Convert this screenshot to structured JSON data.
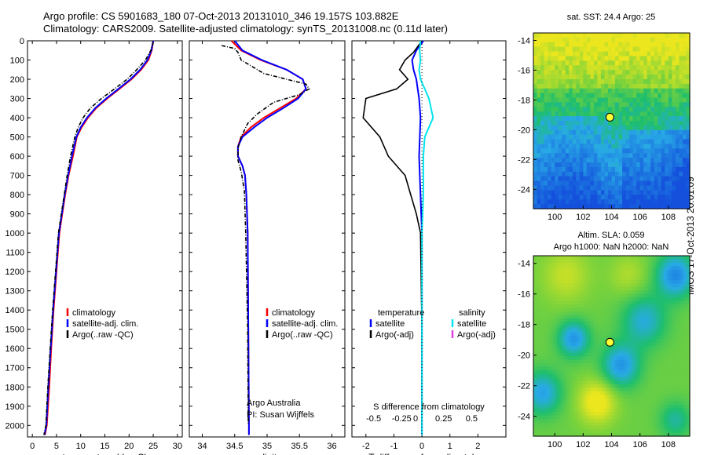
{
  "header": {
    "title_line1": "Argo profile: CS 5901683_180 07-Oct-2013 20131010_346 19.157S 103.882E",
    "title_line2": "Climatology: CARS2009. Satellite-adjusted climatology: synTS_20131008.nc (0.11d later)"
  },
  "footer": {
    "stamp": "IMOS 17-Oct-2013 20:01:09"
  },
  "colors": {
    "climatology": "#ff0000",
    "satellite": "#0000ff",
    "argo": "#000000",
    "sal_satellite": "#00e5ee",
    "sal_argo": "#e040e0"
  },
  "chart_data": [
    {
      "id": "temperature",
      "type": "line",
      "xlabel": "temperature (deg C)",
      "xlim": [
        -1,
        31
      ],
      "xticks": [
        0,
        5,
        10,
        15,
        20,
        25,
        30
      ],
      "ylim": [
        0,
        2060
      ],
      "yticks": [
        0,
        100,
        200,
        300,
        400,
        500,
        600,
        700,
        800,
        900,
        1000,
        1100,
        1200,
        1300,
        1400,
        1500,
        1600,
        1700,
        1800,
        1900,
        2000
      ],
      "legend": [
        "climatology",
        "satellite-adj. clim.",
        "Argo(..raw -QC)"
      ],
      "series": [
        {
          "name": "climatology",
          "color": "#ff0000",
          "points": [
            [
              25,
              0
            ],
            [
              24.7,
              50
            ],
            [
              24,
              100
            ],
            [
              22.5,
              150
            ],
            [
              20.5,
              200
            ],
            [
              18,
              250
            ],
            [
              15.5,
              300
            ],
            [
              13.2,
              350
            ],
            [
              11.5,
              400
            ],
            [
              10.2,
              450
            ],
            [
              9.2,
              500
            ],
            [
              8.4,
              600
            ],
            [
              7.5,
              700
            ],
            [
              6.8,
              800
            ],
            [
              6.2,
              900
            ],
            [
              5.6,
              1000
            ],
            [
              5,
              1200
            ],
            [
              4.4,
              1400
            ],
            [
              3.9,
              1600
            ],
            [
              3.5,
              1800
            ],
            [
              3.0,
              2000
            ],
            [
              2.6,
              2050
            ]
          ]
        },
        {
          "name": "satellite-adj. clim.",
          "color": "#0000ff",
          "points": [
            [
              25,
              0
            ],
            [
              24.6,
              50
            ],
            [
              23.8,
              100
            ],
            [
              22.3,
              150
            ],
            [
              20.3,
              200
            ],
            [
              17.8,
              250
            ],
            [
              15.3,
              300
            ],
            [
              13,
              350
            ],
            [
              11.3,
              400
            ],
            [
              10,
              450
            ],
            [
              9.1,
              500
            ],
            [
              8.2,
              600
            ],
            [
              7.4,
              700
            ],
            [
              6.7,
              800
            ],
            [
              6.1,
              900
            ],
            [
              5.5,
              1000
            ],
            [
              4.9,
              1200
            ],
            [
              4.3,
              1400
            ],
            [
              3.8,
              1600
            ],
            [
              3.3,
              1800
            ],
            [
              2.9,
              2000
            ],
            [
              2.5,
              2050
            ]
          ]
        },
        {
          "name": "Argo(..raw -QC)",
          "color": "#000000",
          "points": [
            [
              25,
              5
            ],
            [
              24.5,
              50
            ],
            [
              23.4,
              100
            ],
            [
              21.6,
              150
            ],
            [
              19.6,
              200
            ],
            [
              17,
              250
            ],
            [
              14.3,
              300
            ],
            [
              12,
              350
            ],
            [
              10.5,
              400
            ],
            [
              9.5,
              450
            ],
            [
              8.8,
              500
            ],
            [
              7.9,
              600
            ],
            [
              7.2,
              700
            ],
            [
              6.6,
              800
            ],
            [
              6,
              900
            ],
            [
              5.4,
              1000
            ],
            [
              4.8,
              1200
            ],
            [
              4.2,
              1400
            ],
            [
              3.7,
              1600
            ],
            [
              3.2,
              1800
            ],
            [
              2.8,
              2000
            ],
            [
              2.4,
              2050
            ]
          ]
        }
      ]
    },
    {
      "id": "salinity",
      "type": "line",
      "xlabel": "salinity",
      "xlim": [
        33.8,
        36.2
      ],
      "xticks": [
        34,
        34.5,
        35,
        35.5,
        36
      ],
      "ylim": [
        0,
        2060
      ],
      "yticks": [
        0,
        100,
        200,
        300,
        400,
        500,
        600,
        700,
        800,
        900,
        1000,
        1100,
        1200,
        1300,
        1400,
        1500,
        1600,
        1700,
        1800,
        1900,
        2000
      ],
      "legend": [
        "climatology",
        "satellite-adj. clim.",
        "Argo(..raw -QC)"
      ],
      "annotation": [
        "Argo Australia",
        "PI: Susan Wijffels"
      ],
      "series": [
        {
          "name": "climatology",
          "color": "#ff0000",
          "points": [
            [
              34.45,
              0
            ],
            [
              34.6,
              50
            ],
            [
              34.9,
              100
            ],
            [
              35.3,
              150
            ],
            [
              35.55,
              200
            ],
            [
              35.6,
              250
            ],
            [
              35.45,
              300
            ],
            [
              35.2,
              350
            ],
            [
              34.95,
              400
            ],
            [
              34.75,
              450
            ],
            [
              34.6,
              500
            ],
            [
              34.55,
              550
            ],
            [
              34.55,
              600
            ],
            [
              34.62,
              650
            ],
            [
              34.66,
              700
            ],
            [
              34.68,
              800
            ],
            [
              34.7,
              1000
            ],
            [
              34.71,
              1500
            ],
            [
              34.72,
              2000
            ],
            [
              34.72,
              2050
            ]
          ]
        },
        {
          "name": "satellite-adj. clim.",
          "color": "#0000ff",
          "points": [
            [
              34.5,
              0
            ],
            [
              34.62,
              50
            ],
            [
              34.92,
              100
            ],
            [
              35.3,
              150
            ],
            [
              35.55,
              200
            ],
            [
              35.6,
              250
            ],
            [
              35.48,
              300
            ],
            [
              35.25,
              350
            ],
            [
              35,
              400
            ],
            [
              34.8,
              450
            ],
            [
              34.62,
              500
            ],
            [
              34.55,
              550
            ],
            [
              34.55,
              600
            ],
            [
              34.62,
              650
            ],
            [
              34.66,
              700
            ],
            [
              34.68,
              800
            ],
            [
              34.7,
              1000
            ],
            [
              34.71,
              1500
            ],
            [
              34.72,
              2000
            ],
            [
              34.72,
              2050
            ]
          ]
        },
        {
          "name": "Argo(..raw -QC)",
          "color": "#000000",
          "points": [
            [
              34.3,
              25
            ],
            [
              34.5,
              40
            ],
            [
              34.55,
              60
            ],
            [
              34.6,
              100
            ],
            [
              34.95,
              170
            ],
            [
              35.3,
              200
            ],
            [
              35.6,
              225
            ],
            [
              35.65,
              250
            ],
            [
              35.5,
              280
            ],
            [
              35.1,
              320
            ],
            [
              34.85,
              380
            ],
            [
              34.7,
              430
            ],
            [
              34.6,
              500
            ],
            [
              34.55,
              560
            ],
            [
              34.55,
              620
            ],
            [
              34.6,
              680
            ],
            [
              34.65,
              780
            ],
            [
              34.67,
              1000
            ],
            [
              34.7,
              1500
            ],
            [
              34.71,
              2000
            ]
          ]
        }
      ]
    },
    {
      "id": "difference",
      "type": "line",
      "xlabel": "T difference from climatology",
      "xlabel_top": "S difference from climatology",
      "xlim": [
        -2.5,
        3
      ],
      "xticks": [
        -2,
        -1,
        0,
        1,
        2
      ],
      "top_ticks": [
        "-0.5",
        "-0.25",
        "0",
        "0.25",
        "0.5"
      ],
      "ylim": [
        0,
        2060
      ],
      "legend_temperature": [
        "temperature",
        "satellite",
        "Argo(-adj)"
      ],
      "legend_salinity": [
        "salinity",
        "satellite",
        "Argo(-adj)"
      ],
      "series": [
        {
          "name": "T satellite",
          "color": "#0000ff",
          "points": [
            [
              0.05,
              0
            ],
            [
              -0.2,
              50
            ],
            [
              -0.35,
              100
            ],
            [
              -0.3,
              150
            ],
            [
              -0.2,
              200
            ],
            [
              -0.15,
              250
            ],
            [
              -0.1,
              300
            ],
            [
              -0.05,
              400
            ],
            [
              -0.1,
              600
            ],
            [
              -0.05,
              800
            ],
            [
              0,
              1000
            ],
            [
              0,
              1500
            ],
            [
              0,
              2000
            ],
            [
              0,
              2050
            ]
          ]
        },
        {
          "name": "T Argo(-adj)",
          "color": "#000000",
          "points": [
            [
              0,
              0
            ],
            [
              -0.3,
              60
            ],
            [
              -0.6,
              100
            ],
            [
              -0.8,
              150
            ],
            [
              -0.5,
              200
            ],
            [
              -0.9,
              250
            ],
            [
              -2.0,
              300
            ],
            [
              -2.1,
              400
            ],
            [
              -1.5,
              500
            ],
            [
              -1.2,
              600
            ],
            [
              -0.6,
              700
            ],
            [
              -0.4,
              800
            ],
            [
              -0.2,
              900
            ],
            [
              -0.05,
              1000
            ],
            [
              0,
              1500
            ],
            [
              0,
              2000
            ]
          ]
        },
        {
          "name": "S satellite",
          "color": "#00e5ee",
          "points": [
            [
              -0.05,
              0
            ],
            [
              -0.08,
              50
            ],
            [
              -0.05,
              100
            ],
            [
              -0.1,
              150
            ],
            [
              -0.05,
              200
            ],
            [
              0.25,
              300
            ],
            [
              0.4,
              400
            ],
            [
              0.1,
              500
            ],
            [
              0.05,
              600
            ],
            [
              0.05,
              800
            ],
            [
              0,
              1000
            ],
            [
              0,
              1500
            ],
            [
              0,
              2000
            ],
            [
              0,
              2050
            ]
          ]
        }
      ]
    },
    {
      "id": "sst_map",
      "type": "heatmap",
      "title": "sat. SST: 24.4  Argo: 25",
      "xticks": [
        100,
        102,
        104,
        106,
        108
      ],
      "yticks": [
        -14,
        -16,
        -18,
        -20,
        -22,
        -24
      ],
      "xlim": [
        98.5,
        109.5
      ],
      "ylim": [
        -25.3,
        -13.5
      ],
      "marker": {
        "lon": 103.882,
        "lat": -19.157
      }
    },
    {
      "id": "sla_map",
      "type": "heatmap",
      "title": "Altim. SLA: 0.059",
      "subtitle": "Argo h1000: NaN h2000: NaN",
      "xticks": [
        100,
        102,
        104,
        106,
        108
      ],
      "yticks": [
        -14,
        -16,
        -18,
        -20,
        -22,
        -24
      ],
      "xlim": [
        98.5,
        109.5
      ],
      "ylim": [
        -25.3,
        -13.5
      ],
      "marker": {
        "lon": 103.882,
        "lat": -19.157
      }
    }
  ]
}
